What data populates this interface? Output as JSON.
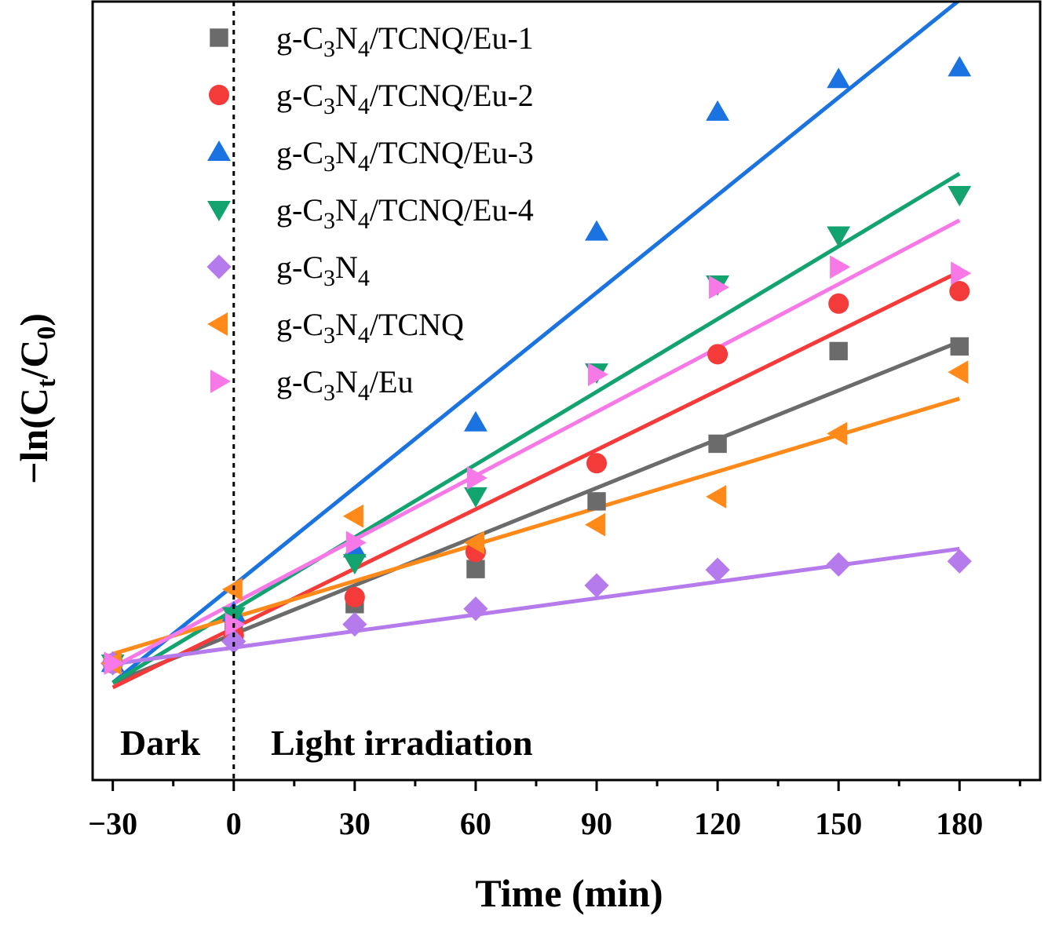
{
  "chart_data": {
    "type": "scatter",
    "title": "",
    "xlabel": "Time (min)",
    "ylabel": "-ln(Ct/C0)",
    "ylabel_parts": {
      "prefix": "−ln(C",
      "sub1": "t",
      "mid": "/C",
      "sub2": "0",
      "suffix": ")"
    },
    "xlim": [
      -35,
      200
    ],
    "ylim": [
      0,
      1
    ],
    "y_tick_labels": "none",
    "x_ticks": [
      -30,
      0,
      30,
      60,
      90,
      120,
      150,
      180
    ],
    "x_tick_labels": [
      "−30",
      "0",
      "30",
      "60",
      "90",
      "120",
      "150",
      "180"
    ],
    "x_minor_ticks": [
      -15,
      15,
      45,
      75,
      105,
      135,
      165,
      195
    ],
    "divider": {
      "x": 0,
      "style": "dotted"
    },
    "region_labels": {
      "dark": "Dark",
      "light": "Light irradiation"
    },
    "legend_position": "top-left",
    "x": [
      -30,
      0,
      30,
      60,
      90,
      120,
      150,
      180
    ],
    "series": [
      {
        "name": "g-C3N4/TCNQ/Eu-1",
        "label_parts": [
          "g-C",
          "3",
          "N",
          "4",
          "/TCNQ/Eu-1"
        ],
        "marker": "square",
        "color": "#6b6b6b",
        "values": [
          0.15,
          0.196,
          0.226,
          0.271,
          0.358,
          0.432,
          0.551,
          0.557
        ],
        "fit": [
          0.125,
          0.563
        ]
      },
      {
        "name": "g-C3N4/TCNQ/Eu-2",
        "label_parts": [
          "g-C",
          "3",
          "N",
          "4",
          "/TCNQ/Eu-2"
        ],
        "marker": "circle",
        "color": "#f53a3a",
        "values": [
          0.15,
          0.186,
          0.235,
          0.293,
          0.407,
          0.547,
          0.612,
          0.628
        ],
        "fit": [
          0.119,
          0.653
        ]
      },
      {
        "name": "g-C3N4/TCNQ/Eu-3",
        "label_parts": [
          "g-C",
          "3",
          "N",
          "4",
          "/TCNQ/Eu-3"
        ],
        "marker": "triangle-up",
        "color": "#1a73e0",
        "values": [
          0.15,
          0.215,
          0.297,
          0.459,
          0.704,
          0.858,
          0.9,
          0.915
        ],
        "fit": [
          0.125,
          1.002
        ]
      },
      {
        "name": "g-C3N4/TCNQ/Eu-4",
        "label_parts": [
          "g-C",
          "3",
          "N",
          "4",
          "/TCNQ/Eu-4"
        ],
        "marker": "triangle-down",
        "color": "#12a36e",
        "values": [
          0.15,
          0.211,
          0.279,
          0.365,
          0.524,
          0.637,
          0.7,
          0.752
        ],
        "fit": [
          0.125,
          0.779
        ]
      },
      {
        "name": "g-C3N4",
        "label_parts": [
          "g-C",
          "3",
          "N",
          "4",
          ""
        ],
        "marker": "diamond",
        "color": "#b57bec",
        "values": [
          0.15,
          0.178,
          0.2,
          0.22,
          0.25,
          0.27,
          0.277,
          0.281
        ],
        "fit": [
          0.149,
          0.297
        ]
      },
      {
        "name": "g-C3N4/TCNQ",
        "label_parts": [
          "g-C",
          "3",
          "N",
          "4",
          "/TCNQ"
        ],
        "marker": "triangle-left",
        "color": "#ff8a1a",
        "values": [
          0.15,
          0.245,
          0.339,
          0.305,
          0.328,
          0.364,
          0.445,
          0.524
        ],
        "fit": [
          0.162,
          0.49
        ]
      },
      {
        "name": "g-C3N4/Eu",
        "label_parts": [
          "g-C",
          "3",
          "N",
          "4",
          "/Eu"
        ],
        "marker": "triangle-right",
        "color": "#f779e8",
        "values": [
          0.15,
          0.2,
          0.305,
          0.388,
          0.521,
          0.633,
          0.659,
          0.651
        ],
        "fit": [
          0.145,
          0.719
        ]
      }
    ]
  }
}
